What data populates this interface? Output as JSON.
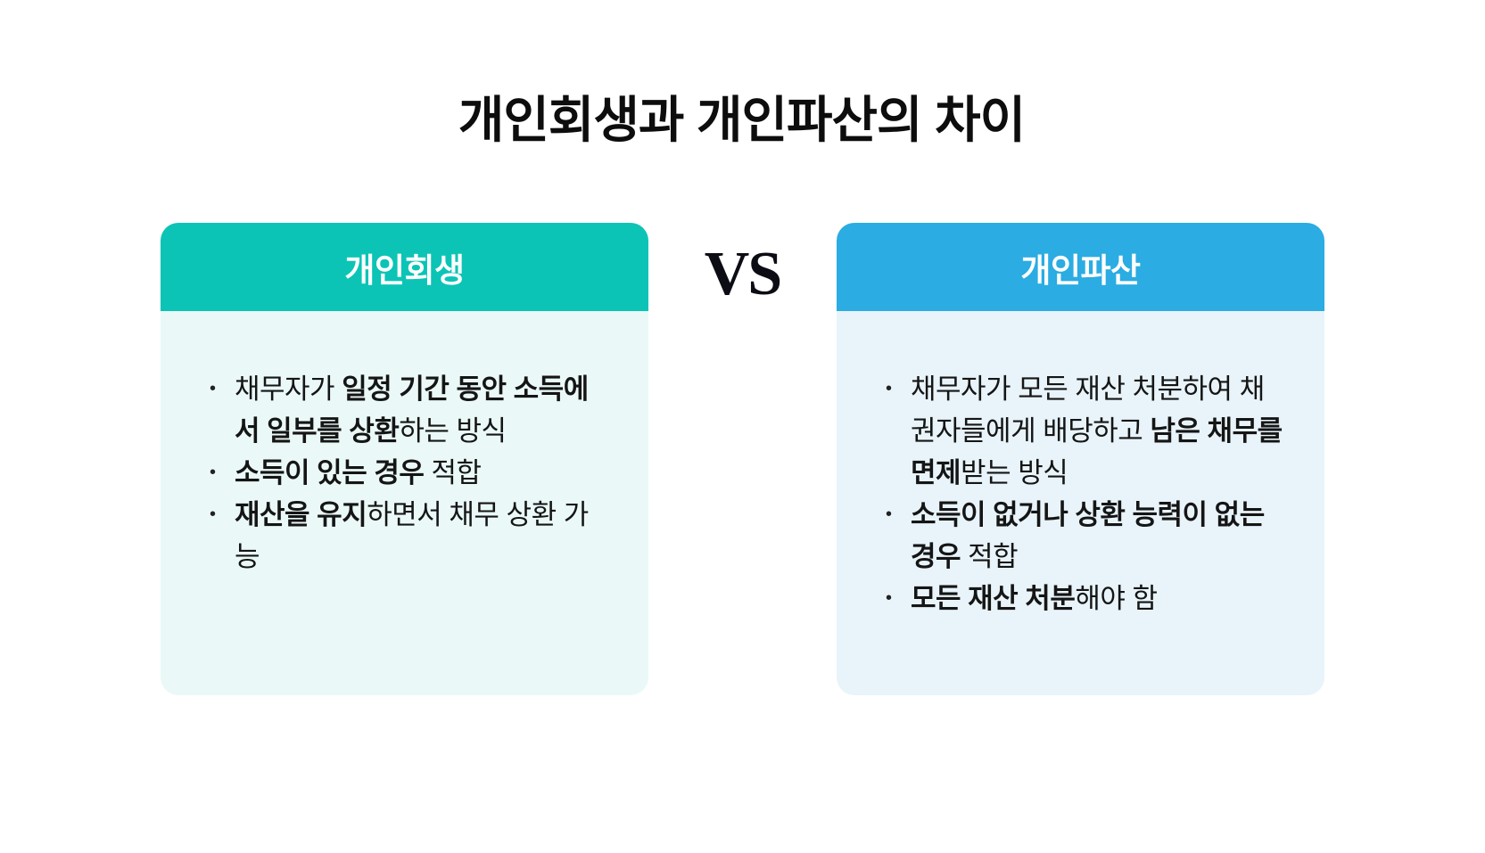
{
  "title": "개인회생과 개인파산의 차이",
  "vs_label": "VS",
  "colors": {
    "left_header_bg": "#0bc4b6",
    "left_body_bg": "#eaf9f7",
    "right_header_bg": "#2bace2",
    "right_body_bg": "#e8f4fa",
    "header_text": "#ffffff",
    "body_text": "#151515",
    "title_text": "#0d0d0d"
  },
  "cards": [
    {
      "id": "rehabilitation",
      "title": "개인회생",
      "header_bg": "#0bc4b6",
      "body_bg": "#eaf9f7",
      "bullets": [
        [
          {
            "text": "채무자가 ",
            "bold": false
          },
          {
            "text": "일정 기간 동안 소득에서 일부를 상환",
            "bold": true
          },
          {
            "text": "하는 방식",
            "bold": false
          }
        ],
        [
          {
            "text": "소득이 있는 경우",
            "bold": true
          },
          {
            "text": " 적합",
            "bold": false
          }
        ],
        [
          {
            "text": "재산을 유지",
            "bold": true
          },
          {
            "text": "하면서 채무 상환 가능",
            "bold": false
          }
        ]
      ]
    },
    {
      "id": "bankruptcy",
      "title": "개인파산",
      "header_bg": "#2bace2",
      "body_bg": "#e8f4fa",
      "bullets": [
        [
          {
            "text": "채무자가 모든 재산 처분하여 채권자들에게 배당하고 ",
            "bold": false
          },
          {
            "text": "남은 채무를 면제",
            "bold": true
          },
          {
            "text": "받는 방식",
            "bold": false
          }
        ],
        [
          {
            "text": "소득이 없거나 상환 능력이 없는 경우",
            "bold": true
          },
          {
            "text": " 적합",
            "bold": false
          }
        ],
        [
          {
            "text": "모든 재산 처분",
            "bold": true
          },
          {
            "text": "해야 함",
            "bold": false
          }
        ]
      ]
    }
  ]
}
